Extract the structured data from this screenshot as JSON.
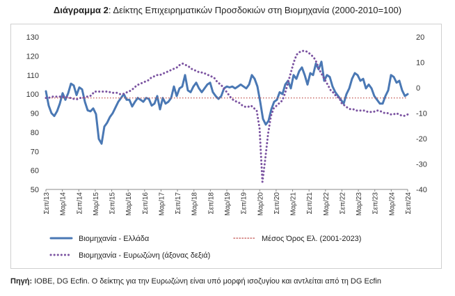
{
  "title": {
    "bold": "Διάγραμμα 2",
    "rest": ": Δείκτης Επιχειρηματικών Προσδοκιών στη Βιομηχανία (2000-2010=100)"
  },
  "source": {
    "label": "Πηγή:",
    "text": " ΙΟΒΕ, DG Ecfin. Ο δείκτης για την Ευρωζώνη είναι υπό μορφή ισοζυγίου και αντλείται από τη DG Ecfin"
  },
  "chart_data": {
    "type": "line",
    "x_tick_labels": [
      "Σεπ/13",
      "Μαρ/14",
      "Σεπ/14",
      "Μαρ/15",
      "Σεπ/15",
      "Μαρ/16",
      "Σεπ/16",
      "Μαρ/17",
      "Σεπ/17",
      "Μαρ/18",
      "Σεπ/18",
      "Μαρ/19",
      "Σεπ/19",
      "Μαρ/20",
      "Σεπ/20",
      "Μαρ/21",
      "Σεπ/21",
      "Μαρ/22",
      "Σεπ/22",
      "Μαρ/23",
      "Σεπ/23",
      "Μαρ/24",
      "Σεπ/24"
    ],
    "ylim_left": [
      50,
      130
    ],
    "yticks_left": [
      50,
      60,
      70,
      80,
      90,
      100,
      110,
      120,
      130
    ],
    "ylim_right": [
      -40,
      20
    ],
    "yticks_right": [
      -40,
      -30,
      -20,
      -10,
      0,
      10,
      20
    ],
    "grid": false,
    "legend_position": "bottom",
    "series": [
      {
        "name": "Βιομηχανία  - Ελλάδα",
        "axis": "left",
        "color": "#4a78b4",
        "style": "solid",
        "values": [
          101.5,
          94,
          90,
          88.5,
          91,
          95,
          100.5,
          97,
          100.5,
          105.5,
          104.5,
          99.5,
          103.5,
          102.5,
          96,
          91.5,
          91,
          92.5,
          89.5,
          76.5,
          74,
          83,
          85,
          88,
          90,
          93,
          96,
          98,
          100,
          97,
          97,
          93.5,
          96,
          98,
          97,
          96,
          98,
          97.5,
          94,
          95,
          99,
          92,
          98,
          95,
          96,
          98,
          104,
          99,
          103,
          104,
          110,
          102,
          101,
          104,
          106,
          103,
          101,
          103,
          105,
          106,
          101,
          99,
          97.5,
          99,
          103,
          104,
          103.5,
          104,
          103,
          104,
          105,
          104,
          103,
          105,
          110,
          108,
          104,
          96,
          87,
          84,
          86,
          92,
          96,
          97,
          101,
          100,
          105,
          107,
          103,
          110,
          108,
          112,
          114,
          110,
          105,
          111,
          110,
          116,
          113,
          117,
          107,
          110,
          109,
          104,
          101,
          99,
          97,
          95,
          100,
          103,
          108,
          111,
          110,
          107,
          108,
          103,
          105,
          103,
          99,
          97,
          95,
          95,
          99,
          102,
          110,
          109,
          106,
          107,
          102,
          99,
          100
        ]
      },
      {
        "name": "Μέσος Όρος Ελ. (2001-2023)",
        "axis": "left",
        "color": "#c0504d",
        "style": "dotted",
        "value": 98
      },
      {
        "name": "Βιομηχανία - Ευρωζώνη (άξονας δεξιά)",
        "axis": "right",
        "color": "#7b53a1",
        "style": "dotted",
        "values": [
          -4,
          -4,
          -3.5,
          -3.5,
          -3.5,
          -3.5,
          -3.5,
          -3.5,
          -4,
          -4,
          -4.5,
          -4.5,
          -4,
          -4,
          -3.5,
          -3.5,
          -3,
          -1.5,
          -1.5,
          -1.5,
          -1.5,
          -1.5,
          -1.5,
          -2,
          -2,
          -2,
          -2.5,
          -2.5,
          -2,
          -1.5,
          -1,
          0,
          1,
          1.5,
          2,
          2.5,
          3,
          4,
          4.5,
          5,
          5,
          5.5,
          6,
          6.5,
          7,
          7.5,
          8,
          9,
          9.5,
          9,
          8.5,
          7.5,
          7,
          6.5,
          6,
          6,
          5.5,
          5,
          4.5,
          4,
          2.5,
          1.5,
          0.5,
          -1,
          -2.5,
          -4,
          -5,
          -5.5,
          -6,
          -7,
          -7.5,
          -7.5,
          -7,
          -8,
          -9,
          -16,
          -37,
          -28,
          -18,
          -11,
          -8,
          -7,
          -6,
          -5,
          -2,
          2,
          6,
          10,
          13,
          14,
          14.5,
          14.5,
          14,
          13,
          12,
          10,
          7,
          5,
          3,
          1,
          -1,
          -2,
          -3.5,
          -4,
          -6.5,
          -7,
          -8,
          -8.5,
          -8.5,
          -9,
          -9,
          -9,
          -9,
          -9.5,
          -9.5,
          -9.5,
          -9,
          -9,
          -9.5,
          -10,
          -10,
          -10.5,
          -10.5,
          -10,
          -10.5,
          -11,
          -11,
          -10.5
        ]
      }
    ]
  }
}
